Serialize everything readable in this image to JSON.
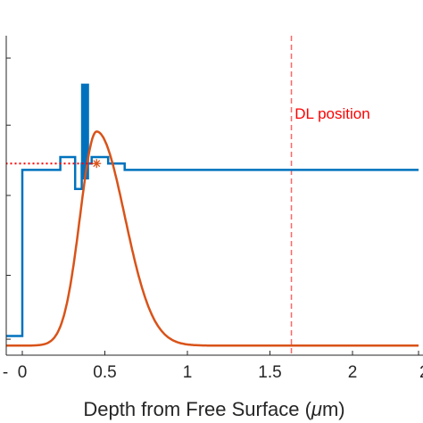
{
  "chart_data": {
    "type": "line",
    "title": "",
    "xlabel_prefix": "Depth from Free Surface (",
    "xlabel_unit": "μ",
    "xlabel_unit_rest": "m)",
    "ylabel": "",
    "xlim": [
      -0.1,
      2.4
    ],
    "ylim": [
      0,
      1
    ],
    "x_ticks": [
      0,
      0.5,
      1,
      1.5,
      2
    ],
    "x_tick_labels": [
      "0",
      "0.5",
      "1",
      "1.5",
      "2"
    ],
    "x_tick_partial": "2",
    "y_ticks": [
      0.05,
      0.25,
      0.5,
      0.72,
      0.93
    ],
    "grid": false,
    "legend": "none",
    "colors": {
      "profile": "#0072BD",
      "distribution": "#D95319",
      "annotation": "#FF0000",
      "axis": "#262626"
    },
    "series": [
      {
        "type": "step",
        "color": "#0072BD",
        "points": [
          [
            -0.1,
            0.06
          ],
          [
            0.0,
            0.06
          ],
          [
            0.0,
            0.58
          ],
          [
            0.23,
            0.58
          ],
          [
            0.23,
            0.62
          ],
          [
            0.32,
            0.62
          ],
          [
            0.32,
            0.52
          ],
          [
            0.36,
            0.52
          ],
          [
            0.36,
            0.6
          ],
          [
            0.42,
            0.6
          ],
          [
            0.42,
            0.62
          ],
          [
            0.52,
            0.62
          ],
          [
            0.52,
            0.6
          ],
          [
            0.62,
            0.6
          ],
          [
            0.62,
            0.58
          ],
          [
            2.4,
            0.58
          ]
        ]
      },
      {
        "type": "line",
        "color": "#D95319",
        "peak_x": 0.45,
        "peak_y": 0.7,
        "baseline": 0.03,
        "left_width": 0.1,
        "right_width": 0.17
      }
    ],
    "bar": {
      "x": 0.38,
      "y_bottom": 0.55,
      "y_top": 0.85,
      "color": "#0072BD"
    },
    "marker": {
      "x": 0.45,
      "y": 0.6,
      "symbol": "*",
      "color": "#D95319"
    },
    "hline": {
      "x_start": -0.1,
      "x_end": 0.45,
      "y": 0.6,
      "color": "#FF0000",
      "style": "dotted"
    },
    "vline": {
      "x": 1.63,
      "color": "#FF6666",
      "style": "dashed"
    },
    "annotation_text": "DL position",
    "annotation_x": 1.65,
    "annotation_y": 0.74
  }
}
